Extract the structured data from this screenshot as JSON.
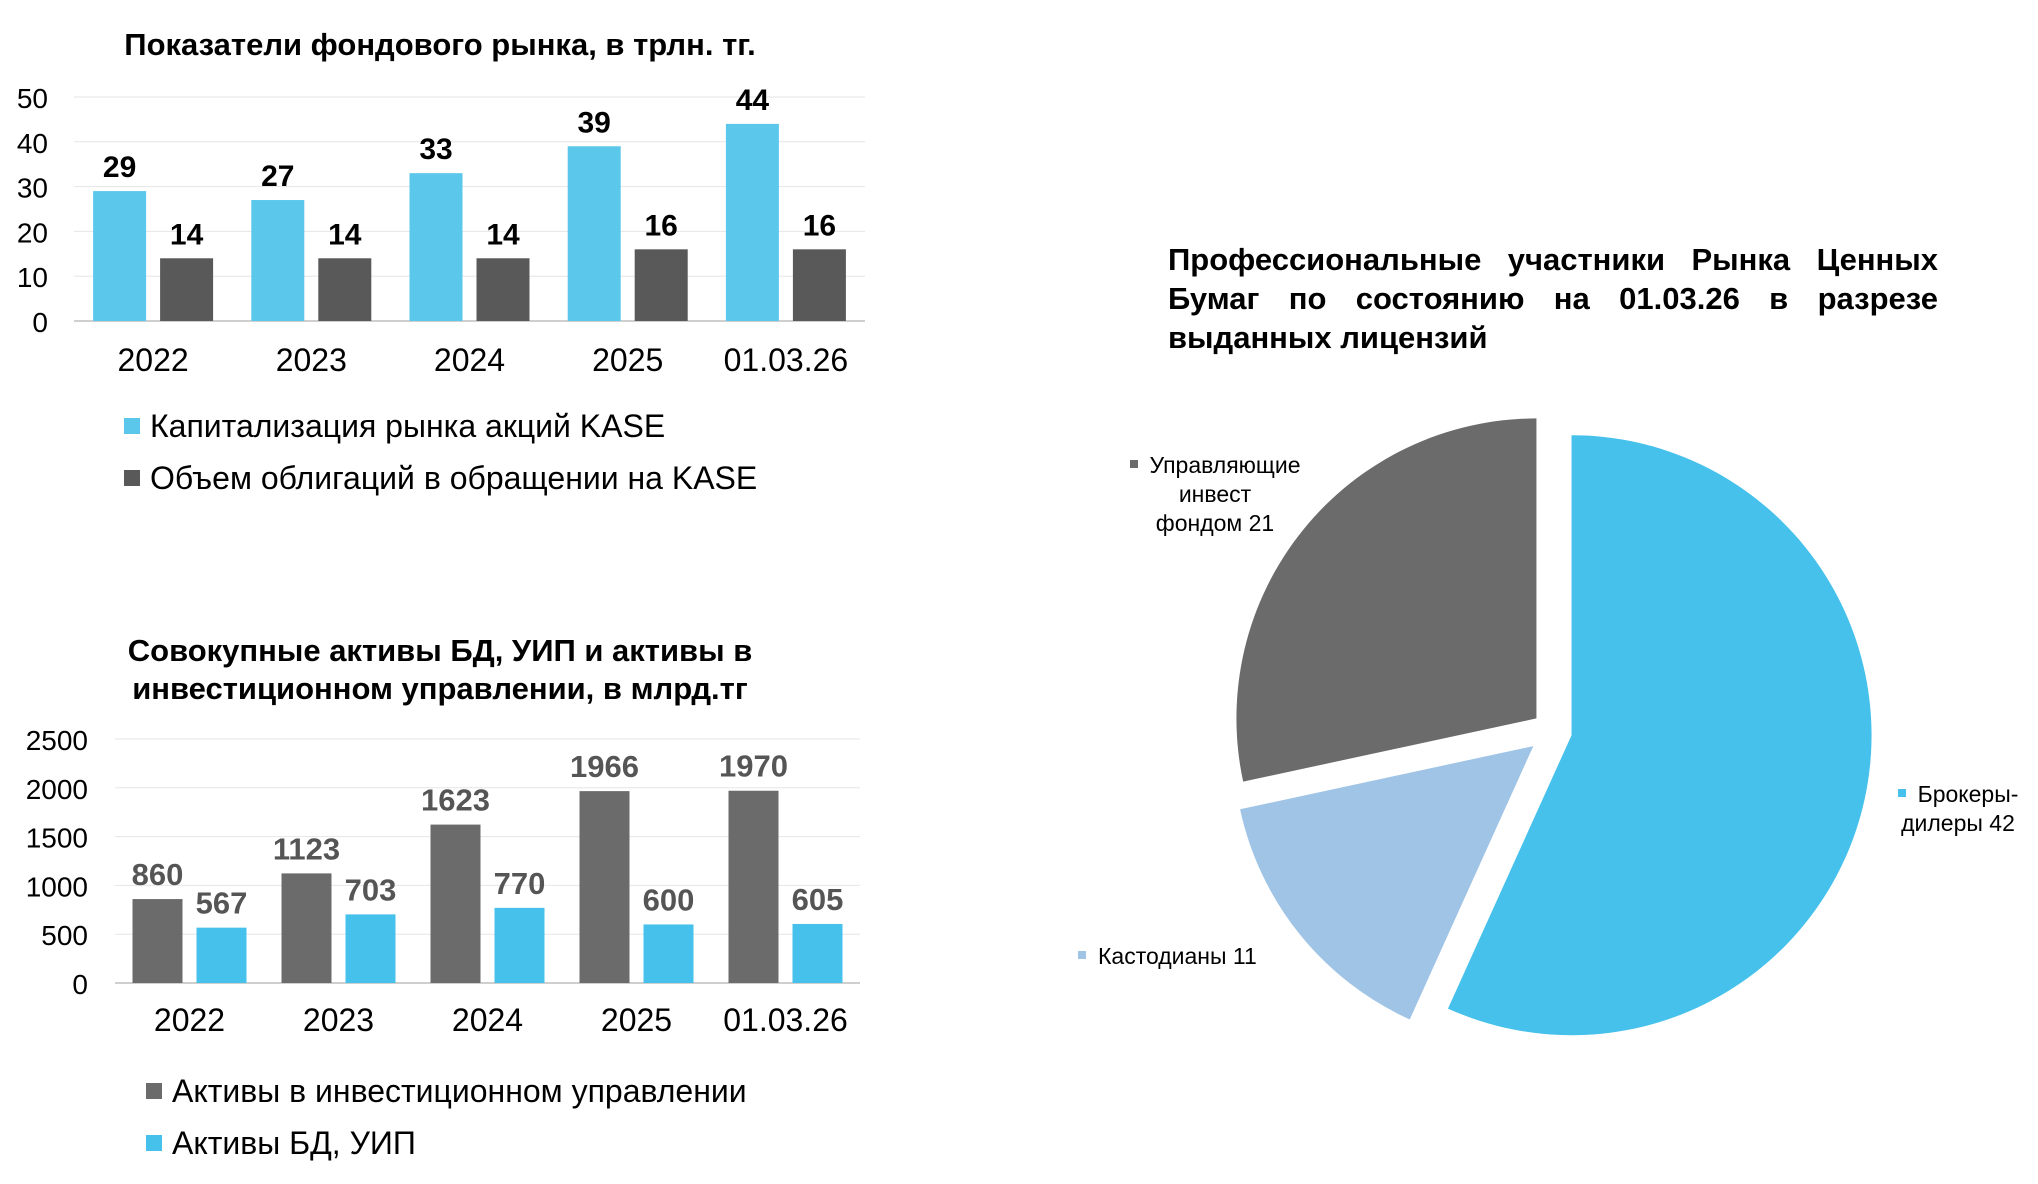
{
  "chart_data": [
    {
      "type": "bar",
      "title": "Показатели фондового рынка, в трлн. тг.",
      "categories": [
        "2022",
        "2023",
        "2024",
        "2025",
        "01.03.26"
      ],
      "series": [
        {
          "name": "Капитализация рынка акций KASE",
          "values": [
            29,
            27,
            33,
            39,
            44
          ],
          "color": "#5BC7EB"
        },
        {
          "name": "Объем облигаций в обращении на KASE",
          "values": [
            14,
            14,
            14,
            16,
            16
          ],
          "color": "#595959"
        }
      ],
      "ylim": [
        0,
        50
      ],
      "yticks": [
        "0",
        "10",
        "20",
        "30",
        "40",
        "50"
      ],
      "legend": "bottom",
      "grid": true
    },
    {
      "type": "bar",
      "title": "Совокупные активы БД, УИП и активы в инвестиционном управлении, в млрд.тг",
      "categories": [
        "2022",
        "2023",
        "2024",
        "2025",
        "01.03.26"
      ],
      "series": [
        {
          "name": "Активы в инвестиционном управлении",
          "values": [
            860,
            1123,
            1623,
            1966,
            1970
          ],
          "color": "#6B6B6B"
        },
        {
          "name": "Активы БД, УИП",
          "values": [
            567,
            703,
            770,
            600,
            605
          ],
          "color": "#45C1EB"
        }
      ],
      "ylim": [
        0,
        2500
      ],
      "yticks": [
        "0",
        "500",
        "1000",
        "1500",
        "2000",
        "2500"
      ],
      "legend": "bottom",
      "grid": true
    },
    {
      "type": "pie",
      "title": "Профессиональные участники Рынка Ценных Бумаг по состоянию на 01.03.26 в разрезе выданных лицензий",
      "slices": [
        {
          "label": "Брокеры-дилеры",
          "value": 42,
          "color": "#45C1EB"
        },
        {
          "label": "Кастодианы",
          "value": 11,
          "color": "#A0C4E6"
        },
        {
          "label": "Управляющие инвест фондом",
          "value": 21,
          "color": "#6B6B6B"
        }
      ],
      "labels": {
        "brokers": [
          "Брокеры-",
          "дилеры 42"
        ],
        "custodians": "Кастодианы 11",
        "managers": [
          "Управляющие",
          "инвест",
          "фондом 21"
        ]
      }
    }
  ]
}
